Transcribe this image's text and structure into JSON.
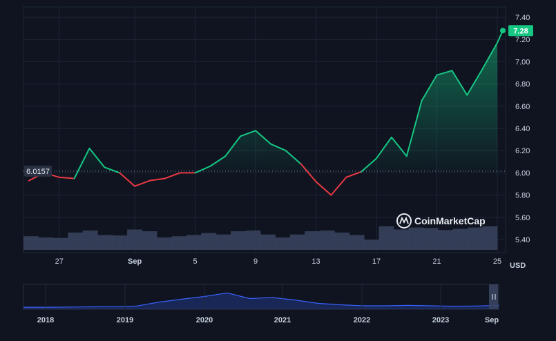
{
  "chart_data": {
    "type": "line",
    "title": "",
    "xlabel": "",
    "ylabel": "USD",
    "unit": "USD",
    "ylim": [
      5.35,
      7.45
    ],
    "y_ticks": [
      "7.40",
      "7.20",
      "7.00",
      "6.80",
      "6.60",
      "6.40",
      "6.20",
      "6.00",
      "5.80",
      "5.60",
      "5.40"
    ],
    "x_ticks": [
      "27",
      "Sep",
      "5",
      "9",
      "13",
      "17",
      "21",
      "25"
    ],
    "baseline_label": "6.0157",
    "baseline_value": 6.0157,
    "current_label": "7.28",
    "current_value": 7.28,
    "colors": {
      "up": "#16c784",
      "down": "#ea3943",
      "background": "#0f1420",
      "grid": "#1e2738",
      "volume": "#3a4460",
      "navigator_line": "#3861fb"
    },
    "series": [
      {
        "x": [
          "Aug 25",
          "Aug 26",
          "Aug 27",
          "Aug 28",
          "Aug 29",
          "Aug 30",
          "Aug 31",
          "Sep 1",
          "Sep 2",
          "Sep 3",
          "Sep 4",
          "Sep 5",
          "Sep 6",
          "Sep 7",
          "Sep 8",
          "Sep 9",
          "Sep 10",
          "Sep 11",
          "Sep 12",
          "Sep 13",
          "Sep 14",
          "Sep 15",
          "Sep 16",
          "Sep 17",
          "Sep 18",
          "Sep 19",
          "Sep 20",
          "Sep 21",
          "Sep 22",
          "Sep 23",
          "Sep 24",
          "Sep 25"
        ],
        "values": [
          5.93,
          6.0,
          5.96,
          5.95,
          6.22,
          6.05,
          6.0,
          5.88,
          5.93,
          5.95,
          6.0,
          6.0,
          6.06,
          6.15,
          6.33,
          6.38,
          6.26,
          6.2,
          6.08,
          5.92,
          5.8,
          5.96,
          6.01,
          6.13,
          6.32,
          6.15,
          6.65,
          6.88,
          6.92,
          6.7,
          6.93,
          7.17
        ]
      }
    ],
    "volume": [
      0.55,
      0.5,
      0.48,
      0.7,
      0.78,
      0.6,
      0.58,
      0.82,
      0.75,
      0.5,
      0.55,
      0.6,
      0.68,
      0.62,
      0.75,
      0.78,
      0.62,
      0.5,
      0.62,
      0.75,
      0.78,
      0.7,
      0.6,
      0.4,
      0.95,
      0.82,
      0.9,
      0.88,
      0.8,
      0.85,
      0.9,
      0.95
    ],
    "watermark": "CoinMarketCap",
    "navigator": {
      "x_ticks": [
        "2018",
        "2019",
        "2020",
        "2021",
        "2022",
        "2023",
        "Sep"
      ],
      "values": [
        0.03,
        0.03,
        0.04,
        0.05,
        0.06,
        0.09,
        0.28,
        0.42,
        0.55,
        0.72,
        0.45,
        0.5,
        0.38,
        0.22,
        0.15,
        0.1,
        0.1,
        0.12,
        0.1,
        0.08,
        0.09,
        0.12
      ]
    }
  }
}
